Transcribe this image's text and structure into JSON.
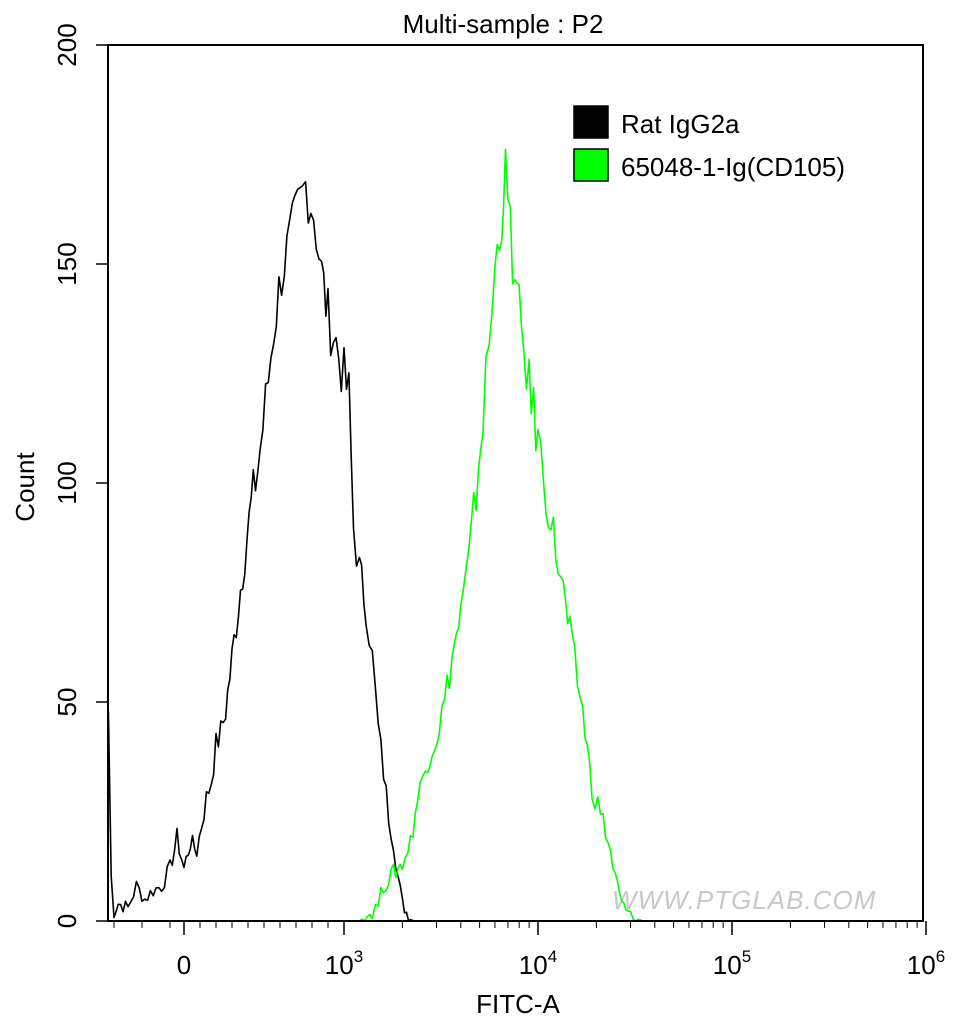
{
  "chart_data": {
    "type": "histogram-overlay",
    "title": "Multi-sample : P2",
    "xlabel": "FITC-A",
    "ylabel": "Count",
    "ylim": [
      0,
      200
    ],
    "y_ticks": [
      0,
      50,
      100,
      150,
      200
    ],
    "x_scale": "biexponential",
    "x_ticks": [
      {
        "base": "0",
        "exp": "",
        "value": 0
      },
      {
        "base": "10",
        "exp": "3",
        "value": 1000
      },
      {
        "base": "10",
        "exp": "4",
        "value": 10000
      },
      {
        "base": "10",
        "exp": "5",
        "value": 100000
      },
      {
        "base": "10",
        "exp": "6",
        "value": 1000000
      }
    ],
    "legend": [
      {
        "name": "Rat IgG2a",
        "color": "#000000"
      },
      {
        "name": "65048-1-Ig(CD105)",
        "color": "#00ff00"
      }
    ],
    "series": [
      {
        "name": "Rat IgG2a",
        "color": "#000000",
        "points": [
          [
            -270,
            48
          ],
          [
            -260,
            10
          ],
          [
            -250,
            2
          ],
          [
            -235,
            4
          ],
          [
            -200,
            3
          ],
          [
            -170,
            8
          ],
          [
            -140,
            5
          ],
          [
            -110,
            7
          ],
          [
            -80,
            8
          ],
          [
            -50,
            12
          ],
          [
            -25,
            19
          ],
          [
            0,
            12
          ],
          [
            40,
            18
          ],
          [
            80,
            16
          ],
          [
            110,
            22
          ],
          [
            140,
            28
          ],
          [
            170,
            32
          ],
          [
            200,
            40
          ],
          [
            230,
            43
          ],
          [
            260,
            48
          ],
          [
            300,
            60
          ],
          [
            340,
            72
          ],
          [
            380,
            84
          ],
          [
            420,
            95
          ],
          [
            460,
            103
          ],
          [
            510,
            118
          ],
          [
            560,
            135
          ],
          [
            610,
            148
          ],
          [
            660,
            155
          ],
          [
            710,
            162
          ],
          [
            760,
            168
          ],
          [
            810,
            162
          ],
          [
            860,
            148
          ],
          [
            900,
            138
          ],
          [
            950,
            132
          ],
          [
            1000,
            124
          ],
          [
            1060,
            120
          ],
          [
            1120,
            90
          ],
          [
            1200,
            80
          ],
          [
            1300,
            72
          ],
          [
            1400,
            60
          ],
          [
            1500,
            44
          ],
          [
            1600,
            34
          ],
          [
            1700,
            24
          ],
          [
            1800,
            18
          ],
          [
            1900,
            10
          ],
          [
            2000,
            4
          ],
          [
            2100,
            2
          ],
          [
            2200,
            1
          ],
          [
            2300,
            0
          ],
          [
            3000,
            0
          ]
        ]
      },
      {
        "name": "65048-1-Ig(CD105)",
        "color": "#00ff00",
        "points": [
          [
            1000,
            0
          ],
          [
            1200,
            0
          ],
          [
            1400,
            2
          ],
          [
            1500,
            4
          ],
          [
            1600,
            8
          ],
          [
            1800,
            11
          ],
          [
            2000,
            13
          ],
          [
            2200,
            18
          ],
          [
            2400,
            28
          ],
          [
            2700,
            37
          ],
          [
            3000,
            42
          ],
          [
            3300,
            50
          ],
          [
            3600,
            60
          ],
          [
            4000,
            70
          ],
          [
            4400,
            82
          ],
          [
            4800,
            98
          ],
          [
            5200,
            115
          ],
          [
            5600,
            132
          ],
          [
            6000,
            148
          ],
          [
            6500,
            162
          ],
          [
            6800,
            170
          ],
          [
            7200,
            158
          ],
          [
            7600,
            145
          ],
          [
            8200,
            135
          ],
          [
            9000,
            122
          ],
          [
            10000,
            110
          ],
          [
            11000,
            98
          ],
          [
            12000,
            88
          ],
          [
            13500,
            75
          ],
          [
            15000,
            62
          ],
          [
            17000,
            48
          ],
          [
            19000,
            30
          ],
          [
            21000,
            25
          ],
          [
            23000,
            18
          ],
          [
            25000,
            10
          ],
          [
            27000,
            4
          ],
          [
            30000,
            1
          ],
          [
            35000,
            0
          ],
          [
            45000,
            0
          ]
        ]
      }
    ],
    "watermark": "WWW.PTGLAB.COM"
  }
}
